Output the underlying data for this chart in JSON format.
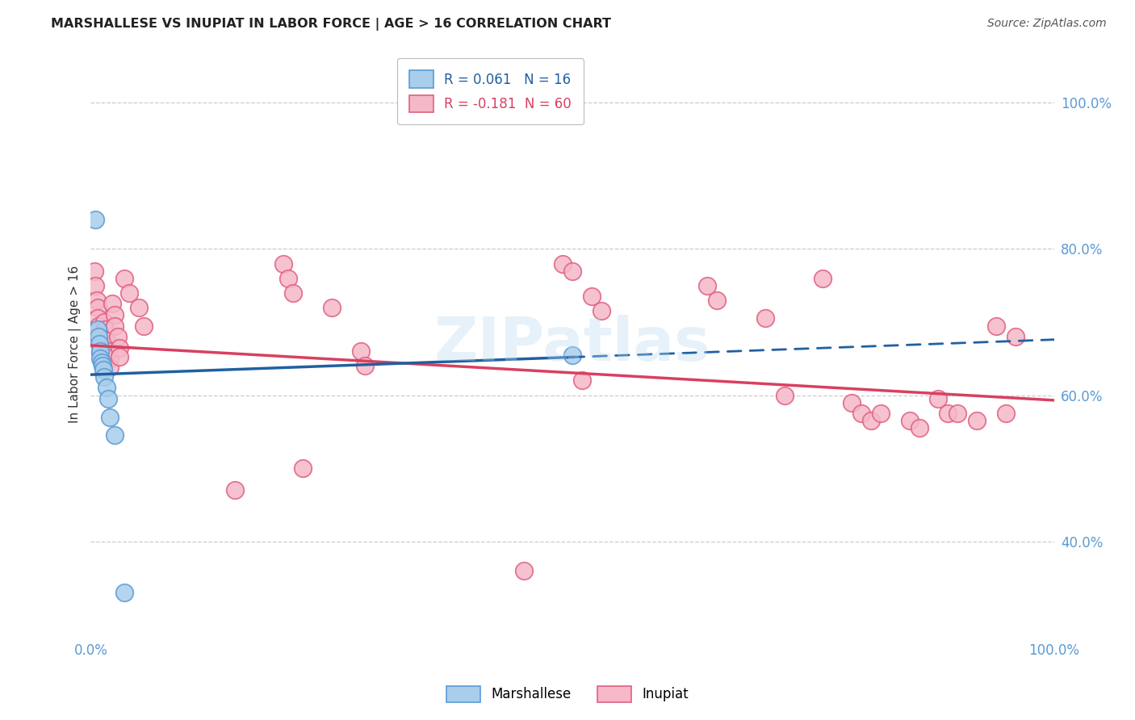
{
  "title": "MARSHALLESE VS INUPIAT IN LABOR FORCE | AGE > 16 CORRELATION CHART",
  "source": "Source: ZipAtlas.com",
  "ylabel": "In Labor Force | Age > 16",
  "xlim": [
    0.0,
    1.0
  ],
  "ylim": [
    0.27,
    1.07
  ],
  "blue_fill": "#A8CEEC",
  "pink_fill": "#F5B8C8",
  "blue_edge": "#5A9BD5",
  "pink_edge": "#E06080",
  "blue_line": "#2060A0",
  "pink_line": "#D84060",
  "grid_color": "#CCCCCC",
  "bg_color": "#FFFFFF",
  "tick_color": "#5A9BD5",
  "r_blue": 0.061,
  "n_blue": 16,
  "r_pink": -0.181,
  "n_pink": 60,
  "blue_intercept": 0.628,
  "blue_slope": 0.048,
  "pink_intercept": 0.668,
  "pink_slope": -0.075,
  "marshallese_x": [
    0.005,
    0.007,
    0.008,
    0.009,
    0.01,
    0.01,
    0.011,
    0.012,
    0.013,
    0.014,
    0.016,
    0.018,
    0.02,
    0.025,
    0.035,
    0.5
  ],
  "marshallese_y": [
    0.84,
    0.69,
    0.68,
    0.67,
    0.66,
    0.65,
    0.645,
    0.64,
    0.635,
    0.625,
    0.61,
    0.595,
    0.57,
    0.545,
    0.33,
    0.655
  ],
  "inupiat_x": [
    0.004,
    0.005,
    0.006,
    0.007,
    0.007,
    0.008,
    0.009,
    0.01,
    0.01,
    0.011,
    0.012,
    0.013,
    0.014,
    0.015,
    0.016,
    0.018,
    0.02,
    0.02,
    0.022,
    0.025,
    0.025,
    0.028,
    0.03,
    0.03,
    0.035,
    0.04,
    0.05,
    0.055,
    0.15,
    0.2,
    0.205,
    0.21,
    0.22,
    0.25,
    0.28,
    0.285,
    0.45,
    0.49,
    0.5,
    0.51,
    0.52,
    0.53,
    0.64,
    0.65,
    0.7,
    0.72,
    0.76,
    0.79,
    0.8,
    0.81,
    0.82,
    0.85,
    0.86,
    0.88,
    0.89,
    0.9,
    0.92,
    0.94,
    0.95,
    0.96
  ],
  "inupiat_y": [
    0.77,
    0.75,
    0.73,
    0.72,
    0.705,
    0.695,
    0.68,
    0.67,
    0.658,
    0.652,
    0.645,
    0.638,
    0.7,
    0.69,
    0.675,
    0.66,
    0.65,
    0.638,
    0.725,
    0.71,
    0.695,
    0.68,
    0.665,
    0.652,
    0.76,
    0.74,
    0.72,
    0.695,
    0.47,
    0.78,
    0.76,
    0.74,
    0.5,
    0.72,
    0.66,
    0.64,
    0.36,
    0.78,
    0.77,
    0.62,
    0.735,
    0.715,
    0.75,
    0.73,
    0.705,
    0.6,
    0.76,
    0.59,
    0.575,
    0.565,
    0.575,
    0.565,
    0.555,
    0.595,
    0.575,
    0.575,
    0.565,
    0.695,
    0.575,
    0.68
  ]
}
